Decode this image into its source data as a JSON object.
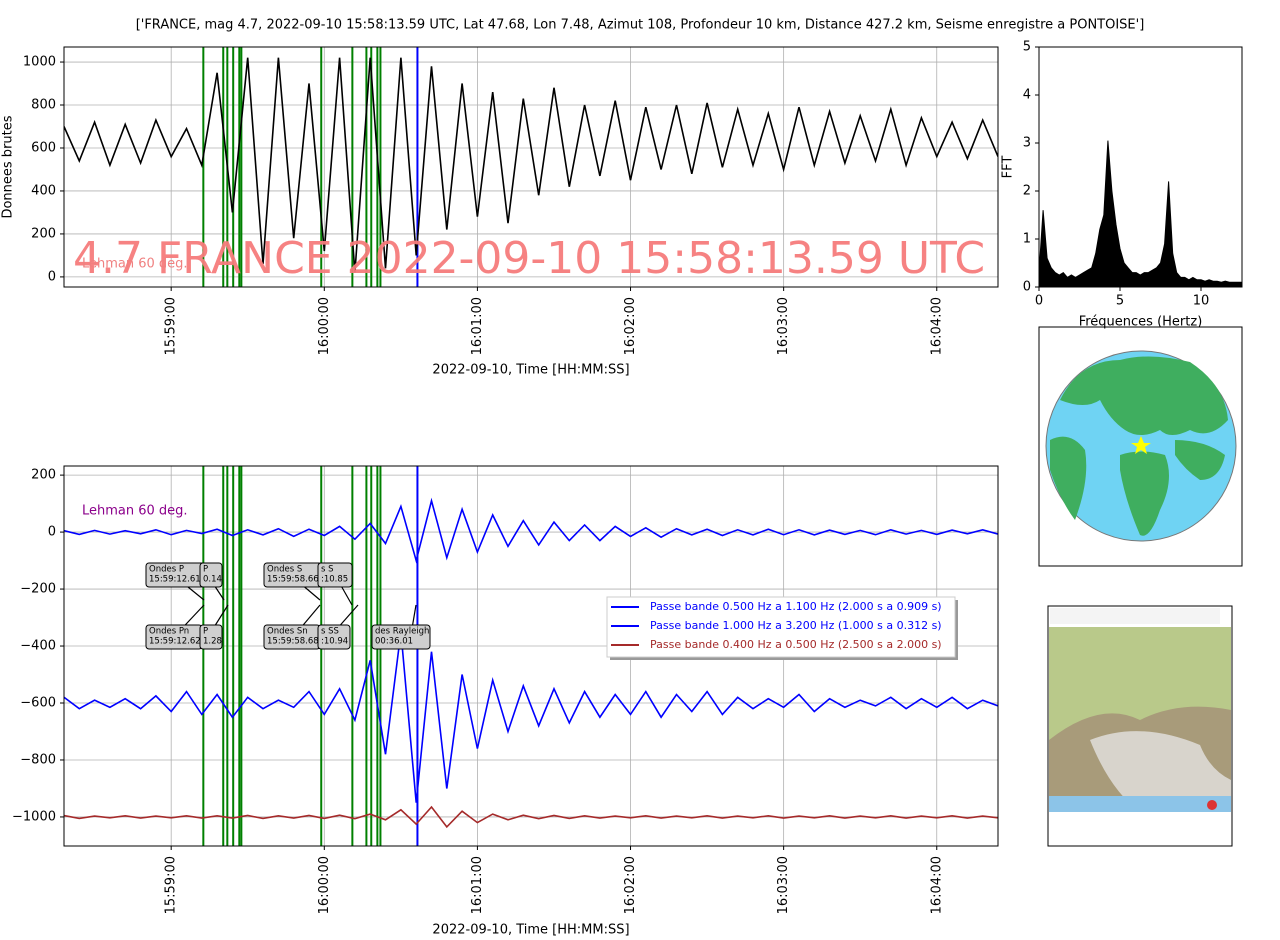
{
  "chart_data": [
    {
      "type": "line",
      "title": "['FRANCE, mag 4.7, 2022-09-10 15:58:13.59 UTC, Lat 47.68, Lon 7.48, Azimut 108, Profondeur 10 km, Distance 427.2 km, Seisme enregistre a PONTOISE']",
      "y_label": "Donnees brutes",
      "x_label": "2022-09-10, Time [HH:MM:SS]",
      "watermark": "4.7 FRANCE 2022-09-10 15:58:13.59 UTC",
      "annotation": "Lehman 60 deg.",
      "grid": true,
      "xlim": [
        57498,
        57864
      ],
      "xticks": [
        {
          "value": 57540,
          "label": "15:59:00"
        },
        {
          "value": 57600,
          "label": "16:00:00"
        },
        {
          "value": 57660,
          "label": "16:01:00"
        },
        {
          "value": 57720,
          "label": "16:02:00"
        },
        {
          "value": 57780,
          "label": "16:03:00"
        },
        {
          "value": 57840,
          "label": "16:04:00"
        }
      ],
      "ylim": [
        -47,
        1070
      ],
      "yticks": [
        0,
        200,
        400,
        600,
        800,
        1000
      ],
      "phase_lines": [
        57552.6,
        57560.4,
        57562,
        57564.3,
        57566.7,
        57567.5,
        57598.8,
        57611,
        57616.5,
        57618.4,
        57620.8,
        57622
      ],
      "phase_color": "#008000",
      "marker_line": 57636.5,
      "marker_color": "#0000ff",
      "x": [
        57498,
        57504,
        57510,
        57516,
        57522,
        57528,
        57534,
        57540,
        57546,
        57552,
        57558,
        57564,
        57570,
        57576,
        57582,
        57588,
        57594,
        57600,
        57606,
        57612,
        57618,
        57624,
        57630,
        57636,
        57642,
        57648,
        57654,
        57660,
        57666,
        57672,
        57678,
        57684,
        57690,
        57696,
        57702,
        57708,
        57714,
        57720,
        57726,
        57732,
        57738,
        57744,
        57750,
        57756,
        57762,
        57768,
        57774,
        57780,
        57786,
        57792,
        57798,
        57804,
        57810,
        57816,
        57822,
        57828,
        57834,
        57840,
        57846,
        57852,
        57858,
        57864
      ],
      "series": [
        {
          "color": "#000000",
          "values": [
            700,
            540,
            720,
            520,
            710,
            530,
            730,
            560,
            690,
            520,
            950,
            300,
            1020,
            60,
            1020,
            180,
            900,
            120,
            1020,
            20,
            1020,
            40,
            1020,
            100,
            980,
            220,
            900,
            280,
            860,
            250,
            830,
            380,
            880,
            420,
            800,
            470,
            820,
            450,
            790,
            500,
            800,
            480,
            810,
            510,
            780,
            520,
            760,
            500,
            790,
            520,
            770,
            530,
            750,
            540,
            780,
            520,
            740,
            560,
            720,
            550,
            730,
            560
          ]
        }
      ]
    },
    {
      "type": "area",
      "y_label": "FFT",
      "x_label": "Fréquences (Hertz)",
      "color": "#000000",
      "xlim": [
        0,
        12.53
      ],
      "xticks": [
        0,
        5,
        10
      ],
      "ylim": [
        0,
        5
      ],
      "yticks": [
        0,
        1,
        2,
        3,
        4,
        5
      ],
      "x": [
        0,
        0.25,
        0.5,
        0.75,
        1,
        1.25,
        1.5,
        1.75,
        2,
        2.25,
        2.5,
        2.75,
        3,
        3.25,
        3.5,
        3.75,
        4,
        4.25,
        4.5,
        4.75,
        5,
        5.25,
        5.5,
        5.75,
        6,
        6.25,
        6.5,
        6.75,
        7,
        7.25,
        7.5,
        7.75,
        8,
        8.25,
        8.5,
        8.75,
        9,
        9.25,
        9.5,
        9.75,
        10,
        10.25,
        10.5,
        10.75,
        11,
        11.25,
        11.5,
        11.75,
        12,
        12.25,
        12.5
      ],
      "values": [
        0.3,
        1.6,
        0.6,
        0.4,
        0.3,
        0.25,
        0.3,
        0.2,
        0.25,
        0.2,
        0.25,
        0.3,
        0.35,
        0.4,
        0.7,
        1.2,
        1.5,
        3.05,
        2.0,
        1.3,
        0.8,
        0.5,
        0.4,
        0.3,
        0.3,
        0.25,
        0.3,
        0.3,
        0.35,
        0.4,
        0.5,
        0.9,
        2.2,
        0.7,
        0.3,
        0.2,
        0.2,
        0.15,
        0.2,
        0.15,
        0.15,
        0.12,
        0.15,
        0.12,
        0.12,
        0.1,
        0.12,
        0.1,
        0.1,
        0.1,
        0.1
      ]
    },
    {
      "type": "line",
      "x_label": "2022-09-10, Time [HH:MM:SS]",
      "annotation": "Lehman 60 deg.",
      "grid": true,
      "xlim": [
        57498,
        57864
      ],
      "xticks": [
        {
          "value": 57540,
          "label": "15:59:00"
        },
        {
          "value": 57600,
          "label": "16:00:00"
        },
        {
          "value": 57660,
          "label": "16:01:00"
        },
        {
          "value": 57720,
          "label": "16:02:00"
        },
        {
          "value": 57780,
          "label": "16:03:00"
        },
        {
          "value": 57840,
          "label": "16:04:00"
        }
      ],
      "ylim": [
        -1102,
        232
      ],
      "yticks": [
        {
          "value": -1000,
          "label": "−1000"
        },
        {
          "value": -800,
          "label": "−800"
        },
        {
          "value": -600,
          "label": "−600"
        },
        {
          "value": -400,
          "label": "−400"
        },
        {
          "value": -200,
          "label": "−200"
        },
        0,
        200
      ],
      "phase_lines": [
        57552.6,
        57560.4,
        57562,
        57564.3,
        57566.7,
        57567.5,
        57598.8,
        57611,
        57616.5,
        57618.4,
        57620.8,
        57622
      ],
      "phase_color": "#008000",
      "marker_line": 57636.5,
      "marker_color": "#0000ff",
      "annotations": [
        {
          "lines": [
            "Ondes P",
            "15:59:12.61"
          ]
        },
        {
          "lines": [
            "P",
            "0.14"
          ]
        },
        {
          "lines": [
            "Ondes S",
            "15:59:58.66"
          ]
        },
        {
          "lines": [
            "s S",
            ":10.85"
          ]
        },
        {
          "lines": [
            "Ondes Pn",
            "15:59:12.62"
          ]
        },
        {
          "lines": [
            "P",
            "1.28"
          ]
        },
        {
          "lines": [
            "Ondes Sn",
            "15:59:58.68"
          ]
        },
        {
          "lines": [
            "s SS",
            ":10.94"
          ]
        },
        {
          "lines": [
            "des Rayleigh",
            "00:36.01"
          ]
        }
      ],
      "x": [
        57498,
        57504,
        57510,
        57516,
        57522,
        57528,
        57534,
        57540,
        57546,
        57552,
        57558,
        57564,
        57570,
        57576,
        57582,
        57588,
        57594,
        57600,
        57606,
        57612,
        57618,
        57624,
        57630,
        57636,
        57642,
        57648,
        57654,
        57660,
        57666,
        57672,
        57678,
        57684,
        57690,
        57696,
        57702,
        57708,
        57714,
        57720,
        57726,
        57732,
        57738,
        57744,
        57750,
        57756,
        57762,
        57768,
        57774,
        57780,
        57786,
        57792,
        57798,
        57804,
        57810,
        57816,
        57822,
        57828,
        57834,
        57840,
        57846,
        57852,
        57858,
        57864
      ],
      "series": [
        {
          "name": "Passe bande 0.500 Hz a 1.100 Hz (2.000 s a 0.909 s)",
          "color": "#0000ff",
          "values": [
            5,
            -8,
            6,
            -7,
            5,
            -6,
            8,
            -9,
            6,
            -5,
            10,
            -12,
            8,
            -10,
            12,
            -15,
            10,
            -12,
            20,
            -25,
            30,
            -40,
            90,
            -100,
            110,
            -90,
            80,
            -70,
            60,
            -50,
            40,
            -45,
            35,
            -30,
            25,
            -30,
            20,
            -15,
            15,
            -18,
            12,
            -10,
            10,
            -12,
            8,
            -10,
            10,
            -9,
            8,
            -10,
            7,
            -8,
            6,
            -9,
            8,
            -7,
            6,
            -8,
            7,
            -6,
            8,
            -7
          ]
        },
        {
          "name": "Passe bande 1.000 Hz a 3.200 Hz (1.000 s a 0.312 s)",
          "color": "#0000ff",
          "values": [
            -580,
            -620,
            -590,
            -615,
            -585,
            -620,
            -575,
            -630,
            -560,
            -640,
            -570,
            -650,
            -580,
            -620,
            -590,
            -615,
            -560,
            -640,
            -550,
            -660,
            -450,
            -780,
            -350,
            -950,
            -420,
            -900,
            -500,
            -760,
            -520,
            -700,
            -540,
            -680,
            -550,
            -670,
            -560,
            -650,
            -570,
            -640,
            -560,
            -650,
            -570,
            -630,
            -560,
            -640,
            -580,
            -620,
            -585,
            -615,
            -570,
            -630,
            -585,
            -615,
            -590,
            -610,
            -580,
            -620,
            -585,
            -615,
            -580,
            -620,
            -590,
            -610
          ]
        },
        {
          "name": "Passe bande 0.400 Hz a 0.500 Hz (2.500 s a 2.000 s)",
          "color": "#a52a2a",
          "values": [
            -995,
            -1005,
            -997,
            -1003,
            -996,
            -1004,
            -997,
            -1003,
            -996,
            -1004,
            -996,
            -1004,
            -995,
            -1005,
            -996,
            -1004,
            -995,
            -1005,
            -994,
            -1006,
            -990,
            -1010,
            -975,
            -1025,
            -965,
            -1035,
            -980,
            -1020,
            -990,
            -1010,
            -994,
            -1006,
            -995,
            -1005,
            -996,
            -1004,
            -997,
            -1003,
            -996,
            -1004,
            -997,
            -1003,
            -996,
            -1004,
            -997,
            -1003,
            -996,
            -1004,
            -997,
            -1003,
            -996,
            -1004,
            -997,
            -1003,
            -996,
            -1004,
            -997,
            -1003,
            -996,
            -1004,
            -997,
            -1003
          ]
        }
      ]
    }
  ]
}
